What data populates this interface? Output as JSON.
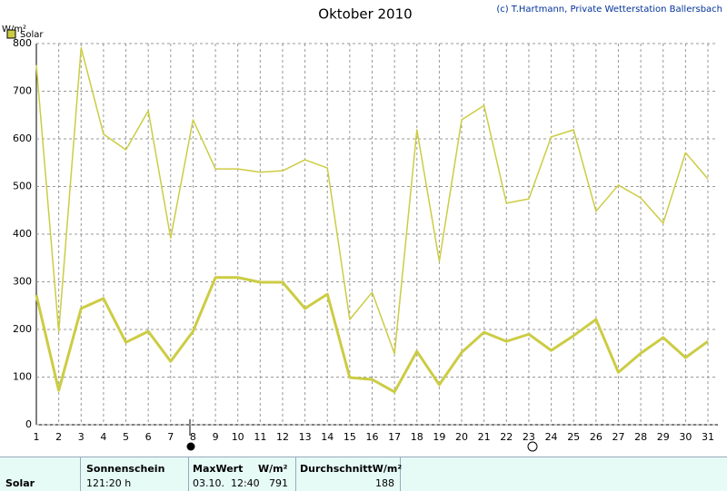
{
  "chart_data": {
    "type": "line",
    "title": "Oktober 2010",
    "credit": "(c) T.Hartmann, Private Wetterstation Ballersbach",
    "y_label": "W/m²",
    "categories": [
      "1",
      "2",
      "3",
      "4",
      "5",
      "6",
      "7",
      "8",
      "9",
      "10",
      "11",
      "12",
      "13",
      "14",
      "15",
      "16",
      "17",
      "18",
      "19",
      "20",
      "21",
      "22",
      "23",
      "24",
      "25",
      "26",
      "27",
      "28",
      "29",
      "30",
      "31"
    ],
    "series": [
      {
        "name": "Solar",
        "color": "#cccc44",
        "values": [
          755,
          195,
          791,
          610,
          577,
          659,
          392,
          640,
          537,
          537,
          530,
          533,
          556,
          539,
          221,
          278,
          149,
          619,
          343,
          640,
          670,
          465,
          474,
          604,
          619,
          448,
          503,
          476,
          423,
          571,
          516
        ]
      },
      {
        "color": "#cccc44",
        "values": [
          272,
          72,
          244,
          265,
          173,
          196,
          133,
          196,
          309,
          309,
          299,
          299,
          244,
          274,
          99,
          95,
          69,
          154,
          84,
          152,
          194,
          175,
          190,
          156,
          187,
          221,
          110,
          150,
          183,
          141,
          175
        ]
      }
    ],
    "ylim": [
      0,
      800
    ],
    "yticks": [
      0,
      100,
      200,
      300,
      400,
      500,
      600,
      700,
      800
    ],
    "grid": true
  },
  "panel": {
    "row_label": "Solar",
    "sunshine_label": "Sonnenschein",
    "sunshine_value": "121:20 h",
    "max_label": "MaxWert",
    "max_unit": "W/m²",
    "max_time": "03.10.  12:40",
    "max_value": "791",
    "avg_label": "DurchschnittW/m²",
    "avg_value": "188"
  }
}
